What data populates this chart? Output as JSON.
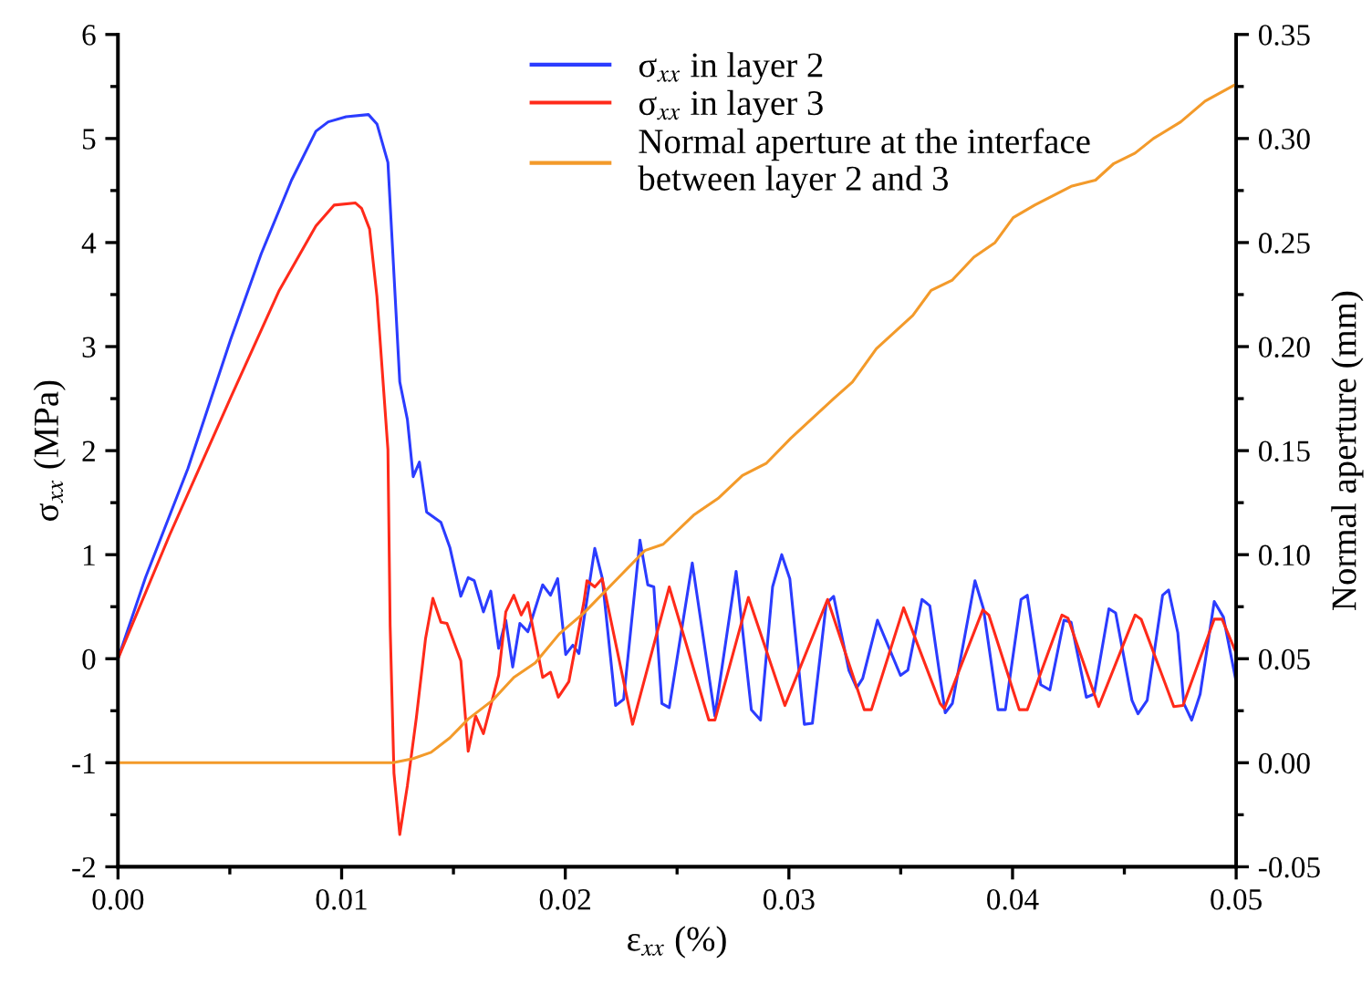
{
  "chart_data": {
    "type": "line",
    "xlabel": "ε$_{xx}$ (%)",
    "ylabel": "σ$_{xx}$ (MPa)",
    "y2label": "Normal aperture (mm)",
    "xlim": [
      0,
      0.05
    ],
    "xticks": [
      {
        "value": 0,
        "label": "0.00"
      },
      {
        "value": 0.005,
        "label": null
      },
      {
        "value": 0.01,
        "label": "0.01"
      },
      {
        "value": 0.015,
        "label": null
      },
      {
        "value": 0.02,
        "label": "0.02"
      },
      {
        "value": 0.025,
        "label": null
      },
      {
        "value": 0.03,
        "label": "0.03"
      },
      {
        "value": 0.035,
        "label": null
      },
      {
        "value": 0.04,
        "label": "0.04"
      },
      {
        "value": 0.045,
        "label": null
      },
      {
        "value": 0.05,
        "label": "0.05"
      }
    ],
    "ylim": [
      -2,
      6
    ],
    "yticks": [
      -2,
      {
        "value": -1.5,
        "label": null
      },
      -1,
      {
        "value": -0.5,
        "label": null
      },
      0,
      {
        "value": 0.5,
        "label": null
      },
      1,
      {
        "value": 1.5,
        "label": null
      },
      2,
      {
        "value": 2.5,
        "label": null
      },
      3,
      {
        "value": 3.5,
        "label": null
      },
      4,
      {
        "value": 4.5,
        "label": null
      },
      5,
      {
        "value": 5.5,
        "label": null
      },
      6
    ],
    "y2lim": [
      -0.05,
      0.35
    ],
    "y2ticks": [
      {
        "value": -0.05,
        "label": "-0.05"
      },
      {
        "value": -0.025,
        "label": null
      },
      {
        "value": 0,
        "label": "0.00"
      },
      {
        "value": 0.025,
        "label": null
      },
      {
        "value": 0.05,
        "label": "0.05"
      },
      {
        "value": 0.075,
        "label": null
      },
      {
        "value": 0.1,
        "label": "0.10"
      },
      {
        "value": 0.125,
        "label": null
      },
      {
        "value": 0.15,
        "label": "0.15"
      },
      {
        "value": 0.175,
        "label": null
      },
      {
        "value": 0.2,
        "label": "0.20"
      },
      {
        "value": 0.225,
        "label": null
      },
      {
        "value": 0.25,
        "label": "0.25"
      },
      {
        "value": 0.275,
        "label": null
      },
      {
        "value": 0.3,
        "label": "0.30"
      },
      {
        "value": 0.325,
        "label": null
      },
      {
        "value": 0.35,
        "label": "0.35"
      }
    ],
    "grid": false,
    "legend": "top",
    "marker": "none",
    "line_style": "solid",
    "series": [
      {
        "name": "σ$_{xx}$ in layer 2",
        "color": "#2b3cff",
        "x": [
          0,
          0.00123,
          0.00313,
          0.00504,
          0.0064,
          0.00776,
          0.00885,
          0.0094,
          0.0102,
          0.0112,
          0.01158,
          0.01207,
          0.0126,
          0.01294,
          0.0132,
          0.01348,
          0.0138,
          0.01444,
          0.01484,
          0.01533,
          0.01566,
          0.01593,
          0.01634,
          0.01667,
          0.01702,
          0.01734,
          0.01765,
          0.01797,
          0.01833,
          0.01899,
          0.01934,
          0.01966,
          0.02002,
          0.02034,
          0.02061,
          0.02083,
          0.02132,
          0.02165,
          0.02225,
          0.02261,
          0.02334,
          0.02369,
          0.02396,
          0.02432,
          0.02465,
          0.02568,
          0.02669,
          0.02764,
          0.02832,
          0.02873,
          0.02927,
          0.02968,
          0.03004,
          0.03069,
          0.03105,
          0.03167,
          0.032,
          0.03268,
          0.03303,
          0.0333,
          0.03396,
          0.03499,
          0.03532,
          0.03595,
          0.0363,
          0.03699,
          0.03731,
          0.03832,
          0.0387,
          0.03935,
          0.03968,
          0.04038,
          0.04066,
          0.04126,
          0.04167,
          0.0423,
          0.04262,
          0.0433,
          0.04365,
          0.04431,
          0.04461,
          0.04534,
          0.04561,
          0.04602,
          0.04671,
          0.04698,
          0.04739,
          0.04766,
          0.04801,
          0.04839,
          0.04902,
          0.04943,
          0.04997
        ],
        "values": [
          0,
          0.78,
          1.83,
          3.07,
          3.89,
          4.6,
          5.07,
          5.16,
          5.21,
          5.23,
          5.14,
          4.77,
          2.66,
          2.3,
          1.75,
          1.89,
          1.41,
          1.31,
          1.07,
          0.6,
          0.78,
          0.75,
          0.45,
          0.65,
          0.1,
          0.37,
          -0.08,
          0.34,
          0.26,
          0.71,
          0.61,
          0.77,
          0.04,
          0.13,
          0.05,
          0.37,
          1.06,
          0.78,
          -0.45,
          -0.39,
          1.14,
          0.71,
          0.69,
          -0.43,
          -0.47,
          0.92,
          -0.55,
          0.84,
          -0.49,
          -0.59,
          0.69,
          1.0,
          0.77,
          -0.63,
          -0.62,
          0.53,
          0.6,
          -0.11,
          -0.28,
          -0.19,
          0.37,
          -0.16,
          -0.11,
          0.57,
          0.51,
          -0.52,
          -0.43,
          0.75,
          0.48,
          -0.49,
          -0.49,
          0.57,
          0.61,
          -0.25,
          -0.3,
          0.37,
          0.35,
          -0.37,
          -0.34,
          0.48,
          0.44,
          -0.4,
          -0.53,
          -0.4,
          0.61,
          0.66,
          0.25,
          -0.43,
          -0.59,
          -0.34,
          0.55,
          0.4,
          -0.19
        ]
      },
      {
        "name": "σ$_{xx}$ in layer 3",
        "color": "#ff2a1a",
        "x": [
          0,
          0.00231,
          0.00504,
          0.00721,
          0.00885,
          0.00966,
          0.01062,
          0.01089,
          0.01125,
          0.01158,
          0.01207,
          0.01217,
          0.01234,
          0.0126,
          0.01294,
          0.01334,
          0.01375,
          0.01408,
          0.01444,
          0.01471,
          0.01533,
          0.01566,
          0.01599,
          0.01634,
          0.01702,
          0.01734,
          0.0177,
          0.01803,
          0.01833,
          0.01899,
          0.01934,
          0.01969,
          0.02016,
          0.02083,
          0.02097,
          0.02132,
          0.02165,
          0.02301,
          0.02465,
          0.02642,
          0.02669,
          0.02819,
          0.02982,
          0.03173,
          0.03337,
          0.03369,
          0.03513,
          0.03676,
          0.03695,
          0.03867,
          0.03894,
          0.0403,
          0.04066,
          0.04221,
          0.04248,
          0.04385,
          0.04548,
          0.04575,
          0.04721,
          0.04762,
          0.04902,
          0.04937,
          0.04997
        ],
        "values": [
          0,
          1.19,
          2.51,
          3.54,
          4.16,
          4.36,
          4.38,
          4.33,
          4.13,
          3.48,
          2.01,
          0.31,
          -1.1,
          -1.69,
          -1.22,
          -0.57,
          0.19,
          0.58,
          0.35,
          0.34,
          -0.02,
          -0.89,
          -0.55,
          -0.72,
          -0.16,
          0.45,
          0.61,
          0.42,
          0.54,
          -0.18,
          -0.13,
          -0.37,
          -0.22,
          0.54,
          0.75,
          0.69,
          0.77,
          -0.63,
          0.69,
          -0.59,
          -0.59,
          0.59,
          -0.45,
          0.57,
          -0.49,
          -0.49,
          0.49,
          -0.43,
          -0.48,
          0.47,
          0.42,
          -0.49,
          -0.49,
          0.42,
          0.39,
          -0.46,
          0.42,
          0.38,
          -0.46,
          -0.45,
          0.38,
          0.38,
          0.07
        ]
      },
      {
        "name": "Normal aperture at the interface\nbetween layer 2 and 3",
        "color": "#f39a2a",
        "axis": "y2",
        "x": [
          0,
          0.0123,
          0.0132,
          0.014,
          0.01484,
          0.01566,
          0.01675,
          0.0177,
          0.01866,
          0.01974,
          0.02083,
          0.02247,
          0.02356,
          0.02438,
          0.02574,
          0.02683,
          0.02792,
          0.029,
          0.03009,
          0.032,
          0.03284,
          0.03391,
          0.03554,
          0.03636,
          0.03731,
          0.03827,
          0.03922,
          0.04003,
          0.04099,
          0.04262,
          0.04371,
          0.04453,
          0.04548,
          0.0463,
          0.04752,
          0.04861,
          0.04997
        ],
        "values": [
          0,
          0,
          0.002,
          0.005,
          0.012,
          0.021,
          0.03,
          0.041,
          0.048,
          0.062,
          0.072,
          0.09,
          0.102,
          0.105,
          0.119,
          0.127,
          0.138,
          0.144,
          0.156,
          0.175,
          0.183,
          0.199,
          0.215,
          0.227,
          0.232,
          0.243,
          0.25,
          0.262,
          0.268,
          0.277,
          0.28,
          0.288,
          0.293,
          0.3,
          0.308,
          0.318,
          0.326
        ]
      }
    ]
  }
}
